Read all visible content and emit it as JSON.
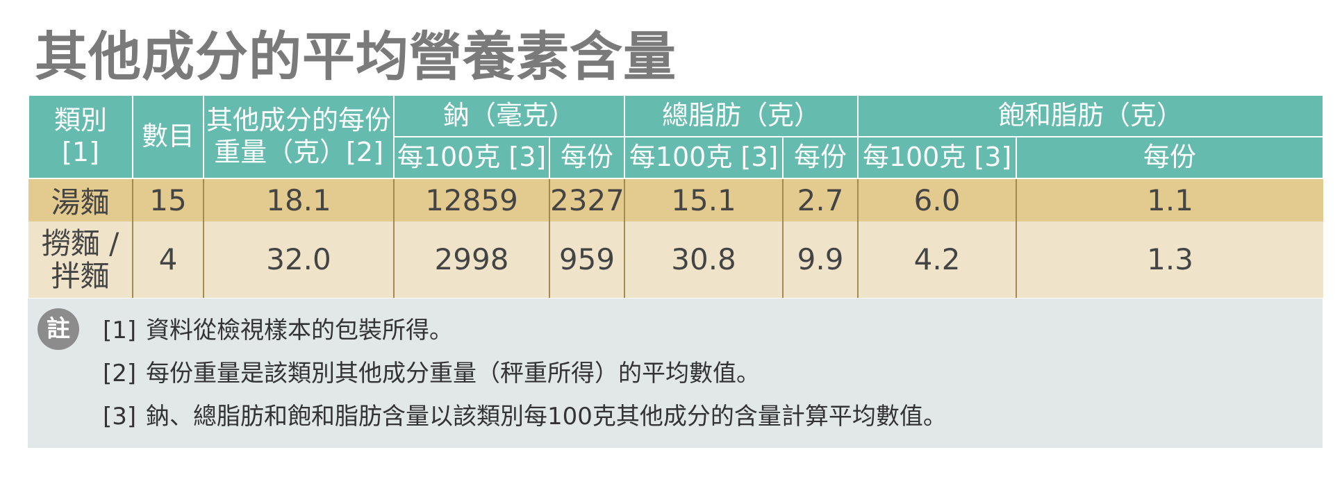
{
  "title": "其他成分的平均營養素含量",
  "table": {
    "headers": {
      "category": "類別\n[1]",
      "count": "數目",
      "weight": "其他成分的每份\n重量（克）[2]",
      "sodium": "鈉（毫克）",
      "fat": "總脂肪（克）",
      "satfat": "飽和脂肪（克）",
      "per100": "每100克 [3]",
      "perserving": "每份"
    },
    "rows": [
      [
        "湯麵",
        "15",
        "18.1",
        "12859",
        "2327",
        "15.1",
        "2.7",
        "6.0",
        "1.1"
      ],
      [
        "撈麵 /\n拌麵",
        "4",
        "32.0",
        "2998",
        "959",
        "30.8",
        "9.9",
        "4.2",
        "1.3"
      ]
    ]
  },
  "notes": {
    "badge": "註",
    "items": [
      {
        "num": "[1]",
        "text": "資料從檢視樣本的包裝所得。"
      },
      {
        "num": "[2]",
        "text": "每份重量是該類別其他成分重量（秤重所得）的平均數值。"
      },
      {
        "num": "[3]",
        "text": "鈉、總脂肪和飽和脂肪含量以該類別每100克其他成分的含量計算平均數值。"
      }
    ]
  },
  "colors": {
    "header_teal": "#65bbad",
    "row_gold": "#e3cb8f",
    "row_cream": "#efe3c9",
    "notes_bg": "#e2e8e8",
    "title_gray": "#7a7a7a"
  }
}
